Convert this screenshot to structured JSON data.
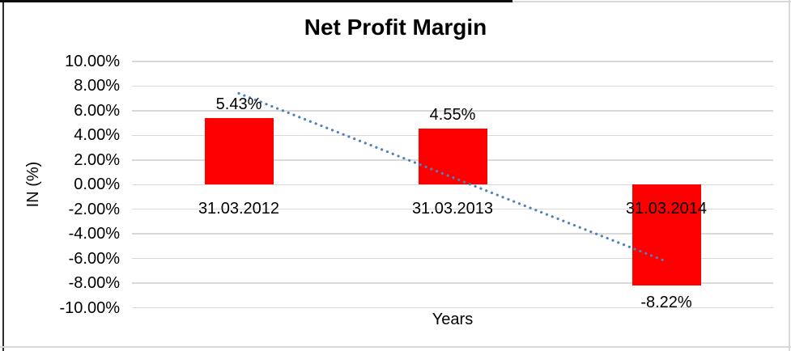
{
  "chart_data": {
    "type": "bar",
    "title": "Net Profit Margin",
    "xlabel": "Years",
    "ylabel": "IN (%)",
    "categories": [
      "31.03.2012",
      "31.03.2013",
      "31.03.2014"
    ],
    "values": [
      5.43,
      4.55,
      -8.22
    ],
    "data_labels": [
      "5.43%",
      "4.55%",
      "-8.22%"
    ],
    "ylim": [
      -10,
      10
    ],
    "ytick_step": 2,
    "ytick_labels": [
      "10.00%",
      "8.00%",
      "6.00%",
      "4.00%",
      "2.00%",
      "0.00%",
      "-2.00%",
      "-4.00%",
      "-6.00%",
      "-8.00%",
      "-10.00%"
    ],
    "grid": true,
    "legend": "none",
    "bar_color": "#ff0000",
    "gridline_color": "#d9d9d9",
    "trendline": {
      "type": "linear",
      "style": "dotted",
      "color": "#4f81bd",
      "start": {
        "category_index": 0,
        "value": 7.41
      },
      "end": {
        "category_index": 2,
        "value": -6.24
      }
    }
  }
}
